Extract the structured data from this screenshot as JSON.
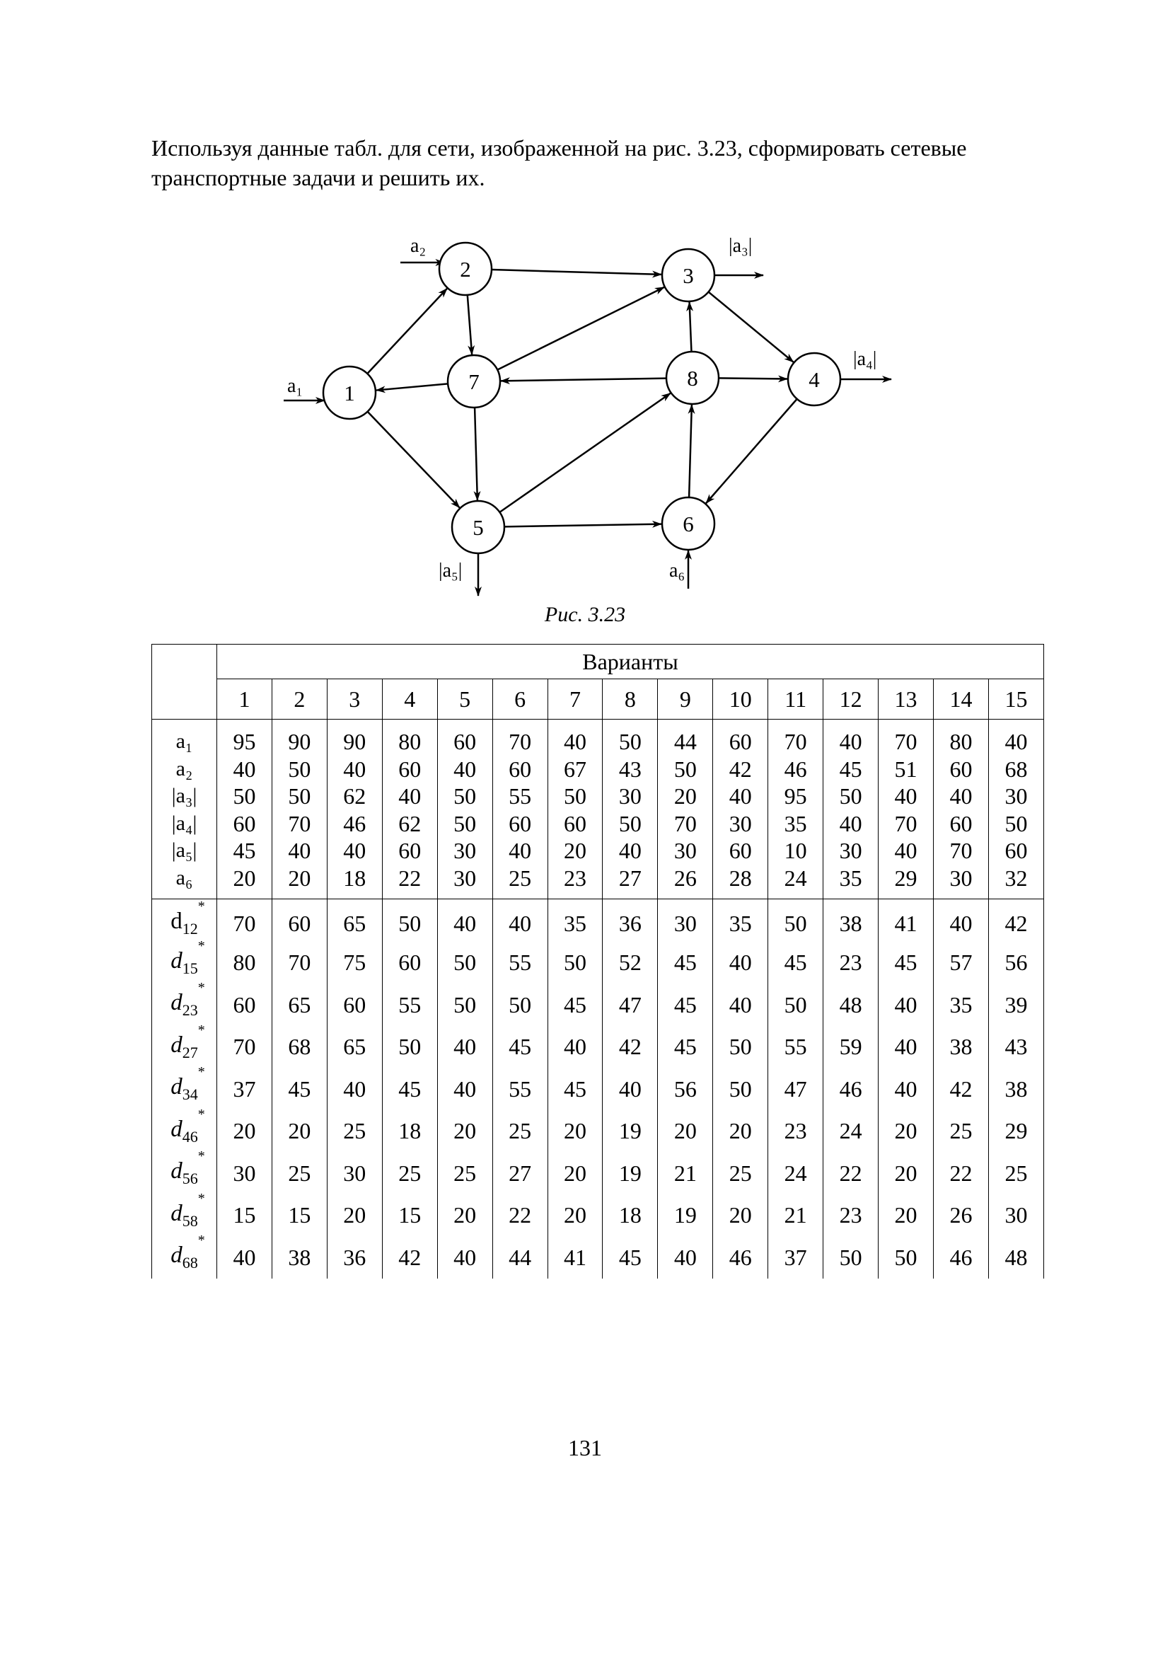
{
  "intro_text": "Используя данные табл. для сети, изображенной на рис. 3.23, сформировать сетевые транспортные задачи и решить их.",
  "figure": {
    "caption": "Рис. 3.23",
    "nodes": [
      {
        "id": "1",
        "label": "1"
      },
      {
        "id": "2",
        "label": "2"
      },
      {
        "id": "3",
        "label": "3"
      },
      {
        "id": "4",
        "label": "4"
      },
      {
        "id": "5",
        "label": "5"
      },
      {
        "id": "6",
        "label": "6"
      },
      {
        "id": "7",
        "label": "7"
      },
      {
        "id": "8",
        "label": "8"
      }
    ],
    "edges": [
      {
        "from": "1",
        "to": "2"
      },
      {
        "from": "1",
        "to": "5"
      },
      {
        "from": "2",
        "to": "3"
      },
      {
        "from": "2",
        "to": "7"
      },
      {
        "from": "7",
        "to": "1"
      },
      {
        "from": "7",
        "to": "3"
      },
      {
        "from": "7",
        "to": "5"
      },
      {
        "from": "8",
        "to": "7"
      },
      {
        "from": "8",
        "to": "3"
      },
      {
        "from": "8",
        "to": "4"
      },
      {
        "from": "3",
        "to": "4"
      },
      {
        "from": "4",
        "to": "6"
      },
      {
        "from": "5",
        "to": "6"
      },
      {
        "from": "5",
        "to": "8"
      },
      {
        "from": "6",
        "to": "8"
      }
    ],
    "flows": [
      {
        "node": "1",
        "label": "a₁",
        "direction": "in"
      },
      {
        "node": "2",
        "label": "a₂",
        "direction": "in"
      },
      {
        "node": "3",
        "label": "|a₃|",
        "direction": "out"
      },
      {
        "node": "4",
        "label": "|a₄|",
        "direction": "out"
      },
      {
        "node": "5",
        "label": "|a₅|",
        "direction": "out"
      },
      {
        "node": "6",
        "label": "a₆",
        "direction": "in"
      }
    ]
  },
  "table": {
    "header": "Варианты",
    "variants": [
      "1",
      "2",
      "3",
      "4",
      "5",
      "6",
      "7",
      "8",
      "9",
      "10",
      "11",
      "12",
      "13",
      "14",
      "15"
    ],
    "supply_rows": [
      {
        "label": "a₁",
        "values": [
          "95",
          "90",
          "90",
          "80",
          "60",
          "70",
          "40",
          "50",
          "44",
          "60",
          "70",
          "40",
          "70",
          "80",
          "40"
        ]
      },
      {
        "label": "a₂",
        "values": [
          "40",
          "50",
          "40",
          "60",
          "40",
          "60",
          "67",
          "43",
          "50",
          "42",
          "46",
          "45",
          "51",
          "60",
          "68"
        ]
      },
      {
        "label": "|a₃|",
        "values": [
          "50",
          "50",
          "62",
          "40",
          "50",
          "55",
          "50",
          "30",
          "20",
          "40",
          "95",
          "50",
          "40",
          "40",
          "30"
        ]
      },
      {
        "label": "|a₄|",
        "values": [
          "60",
          "70",
          "46",
          "62",
          "50",
          "60",
          "60",
          "50",
          "70",
          "30",
          "35",
          "40",
          "70",
          "60",
          "50"
        ]
      },
      {
        "label": "|a₅|",
        "values": [
          "45",
          "40",
          "40",
          "60",
          "30",
          "40",
          "20",
          "40",
          "30",
          "60",
          "10",
          "30",
          "40",
          "70",
          "60"
        ]
      },
      {
        "label": "a₆",
        "values": [
          "20",
          "20",
          "18",
          "22",
          "30",
          "25",
          "23",
          "27",
          "26",
          "28",
          "24",
          "35",
          "29",
          "30",
          "32"
        ]
      }
    ],
    "capacity_rows": [
      {
        "label_base": "d",
        "label_sup": "*",
        "label_sub": "12",
        "italic": false,
        "values": [
          "70",
          "60",
          "65",
          "50",
          "40",
          "40",
          "35",
          "36",
          "30",
          "35",
          "50",
          "38",
          "41",
          "40",
          "42"
        ]
      },
      {
        "label_base": "d",
        "label_sup": "*",
        "label_sub": "15",
        "italic": true,
        "values": [
          "80",
          "70",
          "75",
          "60",
          "50",
          "55",
          "50",
          "52",
          "45",
          "40",
          "45",
          "23",
          "45",
          "57",
          "56"
        ]
      },
      {
        "label_base": "d",
        "label_sup": "*",
        "label_sub": "23",
        "italic": true,
        "values": [
          "60",
          "65",
          "60",
          "55",
          "50",
          "50",
          "45",
          "47",
          "45",
          "40",
          "50",
          "48",
          "40",
          "35",
          "39"
        ]
      },
      {
        "label_base": "d",
        "label_sup": "*",
        "label_sub": "27",
        "italic": true,
        "values": [
          "70",
          "68",
          "65",
          "50",
          "40",
          "45",
          "40",
          "42",
          "45",
          "50",
          "55",
          "59",
          "40",
          "38",
          "43"
        ]
      },
      {
        "label_base": "d",
        "label_sup": "*",
        "label_sub": "34",
        "italic": true,
        "values": [
          "37",
          "45",
          "40",
          "45",
          "40",
          "55",
          "45",
          "40",
          "56",
          "50",
          "47",
          "46",
          "40",
          "42",
          "38"
        ]
      },
      {
        "label_base": "d",
        "label_sup": "*",
        "label_sub": "46",
        "italic": true,
        "values": [
          "20",
          "20",
          "25",
          "18",
          "20",
          "25",
          "20",
          "19",
          "20",
          "20",
          "23",
          "24",
          "20",
          "25",
          "29"
        ]
      },
      {
        "label_base": "d",
        "label_sup": "*",
        "label_sub": "56",
        "italic": true,
        "values": [
          "30",
          "25",
          "30",
          "25",
          "25",
          "27",
          "20",
          "19",
          "21",
          "25",
          "24",
          "22",
          "20",
          "22",
          "25"
        ]
      },
      {
        "label_base": "d",
        "label_sup": "*",
        "label_sub": "58",
        "italic": true,
        "values": [
          "15",
          "15",
          "20",
          "15",
          "20",
          "22",
          "20",
          "18",
          "19",
          "20",
          "21",
          "23",
          "20",
          "26",
          "30"
        ]
      },
      {
        "label_base": "d",
        "label_sup": "*",
        "label_sub": "68",
        "italic": true,
        "values": [
          "40",
          "38",
          "36",
          "42",
          "40",
          "44",
          "41",
          "45",
          "40",
          "46",
          "37",
          "50",
          "50",
          "46",
          "48"
        ]
      }
    ]
  },
  "page_number": "131"
}
